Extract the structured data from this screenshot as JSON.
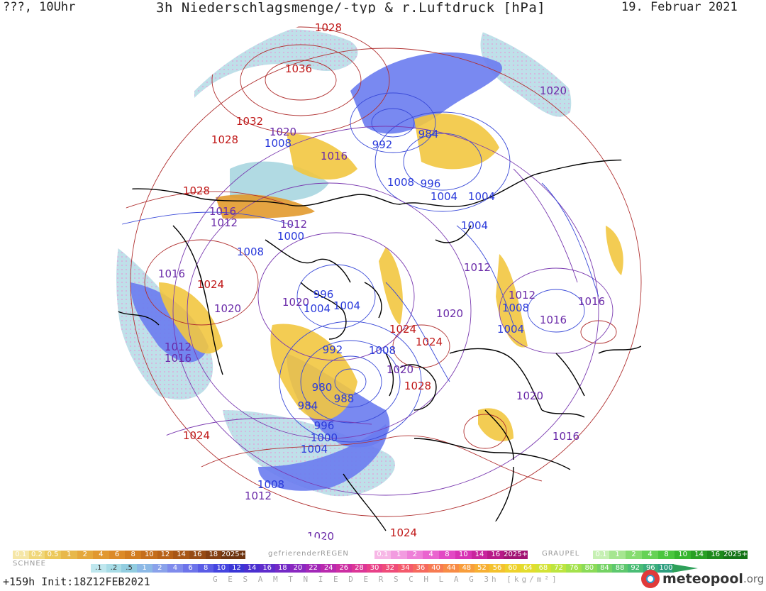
{
  "header": {
    "location_time": "???, 10Uhr",
    "title": "3h Niederschlagsmenge/-typ & r.Luftdruck [hPa]",
    "date": "19. Februar 2021"
  },
  "pressure_labels": [
    {
      "text": "1028",
      "hi": true
    },
    {
      "text": "1036",
      "hi": true
    },
    {
      "text": "1032",
      "hi": true
    },
    {
      "text": "1028",
      "hi": true
    },
    {
      "text": "1020",
      "hi": false
    },
    {
      "text": "1008",
      "hi": false
    },
    {
      "text": "1016",
      "hi": false
    },
    {
      "text": "992",
      "hi": false
    },
    {
      "text": "984",
      "hi": false
    },
    {
      "text": "1008",
      "hi": false
    },
    {
      "text": "996",
      "hi": false
    },
    {
      "text": "1004",
      "hi": false
    },
    {
      "text": "1004",
      "hi": false
    },
    {
      "text": "1020",
      "hi": false
    },
    {
      "text": "1028",
      "hi": true
    },
    {
      "text": "1016",
      "hi": false
    },
    {
      "text": "1012",
      "hi": false
    },
    {
      "text": "1012",
      "hi": false
    },
    {
      "text": "1000",
      "hi": false
    },
    {
      "text": "1008",
      "hi": false
    },
    {
      "text": "1004",
      "hi": false
    },
    {
      "text": "1012",
      "hi": false
    },
    {
      "text": "1016",
      "hi": false
    },
    {
      "text": "1024",
      "hi": true
    },
    {
      "text": "1020",
      "hi": false
    },
    {
      "text": "1020",
      "hi": false
    },
    {
      "text": "1004",
      "hi": false
    },
    {
      "text": "996",
      "hi": false
    },
    {
      "text": "1004",
      "hi": false
    },
    {
      "text": "1012",
      "hi": false
    },
    {
      "text": "1008",
      "hi": false
    },
    {
      "text": "1016",
      "hi": false
    },
    {
      "text": "1016",
      "hi": false
    },
    {
      "text": "1020",
      "hi": false
    },
    {
      "text": "1024",
      "hi": true
    },
    {
      "text": "1024",
      "hi": true
    },
    {
      "text": "1004",
      "hi": false
    },
    {
      "text": "1012",
      "hi": false
    },
    {
      "text": "1016",
      "hi": false
    },
    {
      "text": "992",
      "hi": false
    },
    {
      "text": "1008",
      "hi": false
    },
    {
      "text": "1020",
      "hi": false
    },
    {
      "text": "1028",
      "hi": true
    },
    {
      "text": "980",
      "hi": false
    },
    {
      "text": "984",
      "hi": false
    },
    {
      "text": "988",
      "hi": false
    },
    {
      "text": "996",
      "hi": false
    },
    {
      "text": "1000",
      "hi": false
    },
    {
      "text": "1004",
      "hi": false
    },
    {
      "text": "1024",
      "hi": true
    },
    {
      "text": "1020",
      "hi": false
    },
    {
      "text": "1016",
      "hi": false
    },
    {
      "text": "1008",
      "hi": false
    },
    {
      "text": "1012",
      "hi": false
    },
    {
      "text": "1020",
      "hi": false
    },
    {
      "text": "1020",
      "hi": false
    },
    {
      "text": "1024",
      "hi": true
    }
  ],
  "legend_snow": {
    "name": "SCHNEE",
    "labels": [
      "0.1",
      "0.2",
      "0.5",
      "1",
      "2",
      "4",
      "6",
      "8",
      "10",
      "12",
      "14",
      "16",
      "18",
      "2025+"
    ],
    "colors": [
      "#f5e6a6",
      "#f0d77a",
      "#ecc85a",
      "#e8b84a",
      "#e5a83c",
      "#e19830",
      "#dc8a28",
      "#d27c20",
      "#c56e1c",
      "#b86218",
      "#a85616",
      "#974b14",
      "#843f12",
      "#6e3410"
    ]
  },
  "legend_freezing_rain": {
    "name": "gefrierenderREGEN",
    "labels": [
      "0.1",
      "1",
      "2",
      "4",
      "8",
      "10",
      "14",
      "16",
      "2025+"
    ],
    "colors": [
      "#f7b7e6",
      "#f29be0",
      "#ee80d8",
      "#ea64cf",
      "#e249c4",
      "#d833b4",
      "#c9259e",
      "#b81a88",
      "#a21373"
    ]
  },
  "legend_graupel": {
    "name": "GRAUPEL",
    "labels": [
      "0.1",
      "1",
      "2",
      "4",
      "8",
      "10",
      "14",
      "16",
      "2025+"
    ],
    "colors": [
      "#c6f0b3",
      "#a6e690",
      "#86dc70",
      "#66d255",
      "#4ac63e",
      "#35b52e",
      "#28a024",
      "#1d8a1c",
      "#147416"
    ]
  },
  "legend_total": {
    "labels": [
      ".1",
      ".2",
      ".5",
      "1",
      "2",
      "4",
      "6",
      "8",
      "10",
      "12",
      "14",
      "16",
      "18",
      "20",
      "22",
      "24",
      "26",
      "28",
      "30",
      "32",
      "34",
      "36",
      "40",
      "44",
      "48",
      "52",
      "56",
      "60",
      "64",
      "68",
      "72",
      "76",
      "80",
      "84",
      "88",
      "92",
      "96",
      "100"
    ],
    "colors": [
      "#bfe7ee",
      "#a8dce6",
      "#92cde0",
      "#8cb9e6",
      "#8aa2ea",
      "#7f8bec",
      "#6d74ea",
      "#5a5ce6",
      "#4545e0",
      "#3a36d6",
      "#4a2fd0",
      "#5f2ccc",
      "#742ac6",
      "#8a28c0",
      "#a228b8",
      "#b92aae",
      "#cc2ea2",
      "#dc3696",
      "#e84088",
      "#ef4c7a",
      "#f45a6c",
      "#f66a5e",
      "#f77b52",
      "#f88c46",
      "#f89e3c",
      "#f7b034",
      "#f4c22e",
      "#eed22c",
      "#e3dd2e",
      "#d3e336",
      "#bde540",
      "#a4e24c",
      "#8bdb58",
      "#74d264",
      "#5ec86e",
      "#4abd76",
      "#3aae7c",
      "#2e9f80"
    ]
  },
  "footer": {
    "run": "+159h Init:18Z12FEB2021",
    "total_label": "G E S A M T N I E D E R S C H L A G  3h  [kg/m²]",
    "brand_name": "meteopool",
    "brand_domain": ".org"
  },
  "colors": {
    "isobar_high": "#b03030",
    "isobar_low": "#3a4ad8",
    "isobar_mid": "#7a3ab0",
    "snow": "#f2c740",
    "snow_dark": "#e29a2c",
    "rain_light": "#a9d6e0",
    "rain_heavy": "#6a7cf0",
    "coast": "#000000"
  }
}
